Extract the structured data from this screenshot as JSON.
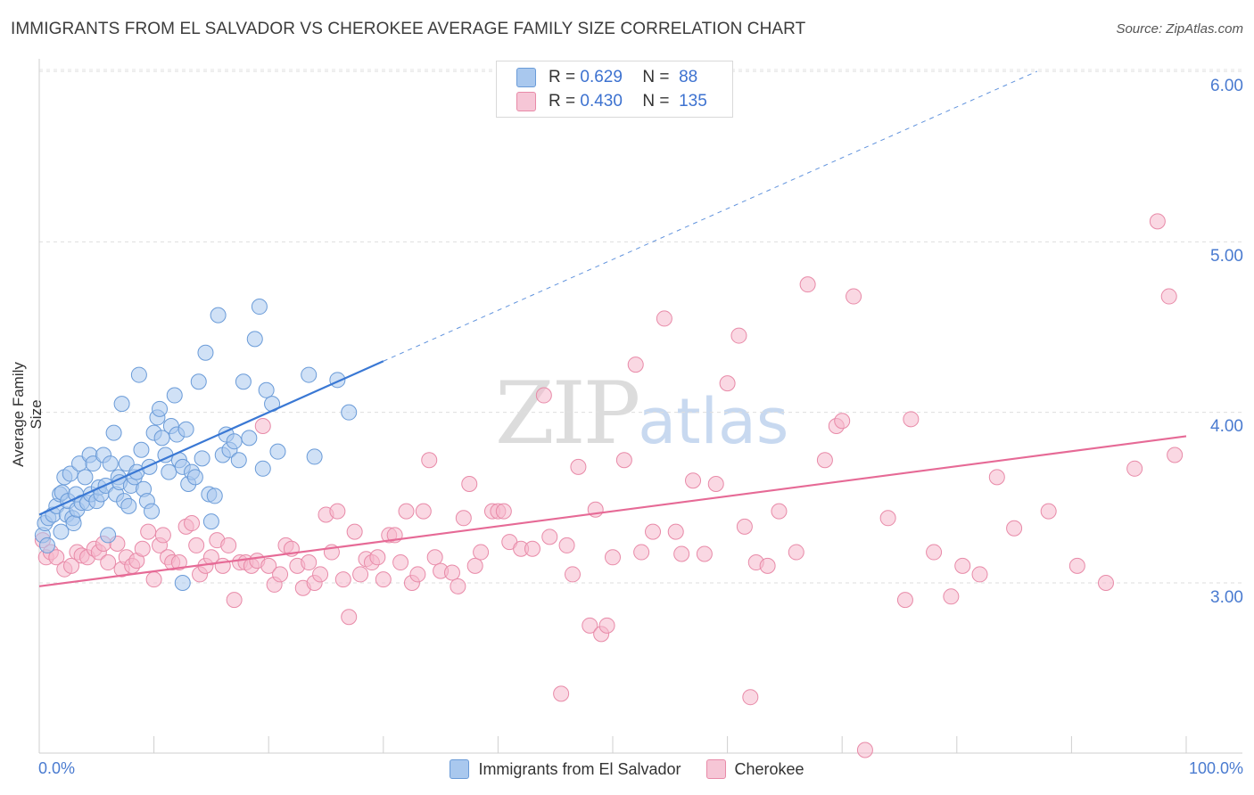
{
  "title": "IMMIGRANTS FROM EL SALVADOR VS CHEROKEE AVERAGE FAMILY SIZE CORRELATION CHART",
  "source": "Source: ZipAtlas.com",
  "watermark": {
    "zip": "ZIP",
    "atlas": "atlas"
  },
  "legend_top": {
    "r_label": "R =",
    "n_label": "N =",
    "rows": [
      {
        "r": "0.629",
        "n": "88"
      },
      {
        "r": "0.430",
        "n": "135"
      }
    ]
  },
  "colors": {
    "blue_fill": "#a9c8ee",
    "blue_stroke": "#6a9bd8",
    "blue_line": "#3a78d4",
    "pink_fill": "#f6b8cc",
    "pink_stroke": "#e88aa8",
    "pink_line": "#e66a96",
    "tick_label": "#4a7bd0"
  },
  "chart_data": {
    "type": "scatter",
    "title": "IMMIGRANTS FROM EL SALVADOR VS CHEROKEE AVERAGE FAMILY SIZE CORRELATION CHART",
    "xlabel_left": "0.0%",
    "xlabel_right": "100.0%",
    "ylabel": "Average Family Size",
    "xlim": [
      0,
      100
    ],
    "ylim": [
      2.0,
      6.1
    ],
    "yticks": [
      3.0,
      4.0,
      5.0,
      6.0
    ],
    "ytick_labels": [
      "3.00",
      "4.00",
      "5.00",
      "6.00"
    ],
    "grid": true,
    "legend_position": "top-center",
    "series": [
      {
        "name": "Immigrants from El Salvador",
        "r": 0.629,
        "n": 88,
        "trend": {
          "x0": 0,
          "y0": 3.4,
          "x1": 30,
          "y1": 4.3,
          "dash_to_x": 87,
          "dash_to_y": 6.0
        },
        "points": [
          [
            0.3,
            3.28
          ],
          [
            0.5,
            3.35
          ],
          [
            0.8,
            3.38
          ],
          [
            1.2,
            3.4
          ],
          [
            1.5,
            3.45
          ],
          [
            1.8,
            3.52
          ],
          [
            2.0,
            3.53
          ],
          [
            2.2,
            3.62
          ],
          [
            2.4,
            3.4
          ],
          [
            2.5,
            3.48
          ],
          [
            2.7,
            3.64
          ],
          [
            2.9,
            3.38
          ],
          [
            3.0,
            3.35
          ],
          [
            3.2,
            3.52
          ],
          [
            3.3,
            3.43
          ],
          [
            3.5,
            3.7
          ],
          [
            3.7,
            3.47
          ],
          [
            4.0,
            3.62
          ],
          [
            4.2,
            3.47
          ],
          [
            4.4,
            3.75
          ],
          [
            4.5,
            3.52
          ],
          [
            4.7,
            3.7
          ],
          [
            5.0,
            3.48
          ],
          [
            5.2,
            3.56
          ],
          [
            5.4,
            3.52
          ],
          [
            5.6,
            3.75
          ],
          [
            5.8,
            3.57
          ],
          [
            6.0,
            3.28
          ],
          [
            6.2,
            3.7
          ],
          [
            6.5,
            3.88
          ],
          [
            6.7,
            3.52
          ],
          [
            6.9,
            3.62
          ],
          [
            7.0,
            3.59
          ],
          [
            7.2,
            4.05
          ],
          [
            7.4,
            3.48
          ],
          [
            7.6,
            3.7
          ],
          [
            7.8,
            3.45
          ],
          [
            8.0,
            3.57
          ],
          [
            8.3,
            3.62
          ],
          [
            8.5,
            3.65
          ],
          [
            8.7,
            4.22
          ],
          [
            8.9,
            3.78
          ],
          [
            9.1,
            3.55
          ],
          [
            9.4,
            3.48
          ],
          [
            9.6,
            3.68
          ],
          [
            9.8,
            3.42
          ],
          [
            10.0,
            3.88
          ],
          [
            10.3,
            3.97
          ],
          [
            10.5,
            4.02
          ],
          [
            10.7,
            3.85
          ],
          [
            11.0,
            3.75
          ],
          [
            11.3,
            3.65
          ],
          [
            11.5,
            3.92
          ],
          [
            11.8,
            4.1
          ],
          [
            12.0,
            3.87
          ],
          [
            12.2,
            3.72
          ],
          [
            12.5,
            3.68
          ],
          [
            12.8,
            3.9
          ],
          [
            13.0,
            3.58
          ],
          [
            13.3,
            3.65
          ],
          [
            13.6,
            3.62
          ],
          [
            13.9,
            4.18
          ],
          [
            14.2,
            3.73
          ],
          [
            14.5,
            4.35
          ],
          [
            14.8,
            3.52
          ],
          [
            15.0,
            3.36
          ],
          [
            15.3,
            3.51
          ],
          [
            15.6,
            4.57
          ],
          [
            16.0,
            3.75
          ],
          [
            16.3,
            3.87
          ],
          [
            16.6,
            3.78
          ],
          [
            17.0,
            3.83
          ],
          [
            17.4,
            3.72
          ],
          [
            17.8,
            4.18
          ],
          [
            18.3,
            3.85
          ],
          [
            18.8,
            4.43
          ],
          [
            19.2,
            4.62
          ],
          [
            19.5,
            3.67
          ],
          [
            19.8,
            4.13
          ],
          [
            20.3,
            4.05
          ],
          [
            20.8,
            3.77
          ],
          [
            23.5,
            4.22
          ],
          [
            24.0,
            3.74
          ],
          [
            26.0,
            4.19
          ],
          [
            27.0,
            4.0
          ],
          [
            0.7,
            3.22
          ],
          [
            1.9,
            3.3
          ],
          [
            12.5,
            3.0
          ]
        ]
      },
      {
        "name": "Cherokee",
        "r": 0.43,
        "n": 135,
        "trend": {
          "x0": 0,
          "y0": 2.98,
          "x1": 100,
          "y1": 3.86
        },
        "points": [
          [
            0.3,
            3.25
          ],
          [
            0.6,
            3.15
          ],
          [
            1.0,
            3.18
          ],
          [
            1.5,
            3.15
          ],
          [
            2.2,
            3.08
          ],
          [
            2.8,
            3.1
          ],
          [
            3.3,
            3.18
          ],
          [
            3.7,
            3.16
          ],
          [
            4.2,
            3.15
          ],
          [
            4.8,
            3.2
          ],
          [
            5.2,
            3.18
          ],
          [
            5.6,
            3.23
          ],
          [
            6.0,
            3.12
          ],
          [
            6.8,
            3.23
          ],
          [
            7.2,
            3.08
          ],
          [
            7.6,
            3.15
          ],
          [
            8.1,
            3.1
          ],
          [
            8.5,
            3.13
          ],
          [
            9.0,
            3.2
          ],
          [
            9.5,
            3.3
          ],
          [
            10.0,
            3.02
          ],
          [
            10.5,
            3.22
          ],
          [
            10.8,
            3.28
          ],
          [
            11.2,
            3.15
          ],
          [
            11.6,
            3.12
          ],
          [
            12.2,
            3.12
          ],
          [
            12.8,
            3.33
          ],
          [
            13.3,
            3.35
          ],
          [
            13.7,
            3.22
          ],
          [
            14.0,
            3.05
          ],
          [
            14.5,
            3.1
          ],
          [
            15.0,
            3.15
          ],
          [
            15.5,
            3.25
          ],
          [
            16.0,
            3.1
          ],
          [
            16.5,
            3.22
          ],
          [
            17.0,
            2.9
          ],
          [
            17.5,
            3.12
          ],
          [
            18.0,
            3.12
          ],
          [
            18.5,
            3.1
          ],
          [
            19.0,
            3.13
          ],
          [
            19.5,
            3.92
          ],
          [
            20.0,
            3.1
          ],
          [
            20.5,
            2.99
          ],
          [
            21.0,
            3.05
          ],
          [
            21.5,
            3.22
          ],
          [
            22.0,
            3.2
          ],
          [
            22.5,
            3.1
          ],
          [
            23.0,
            2.97
          ],
          [
            23.5,
            3.12
          ],
          [
            24.0,
            3.0
          ],
          [
            24.5,
            3.05
          ],
          [
            25.0,
            3.4
          ],
          [
            25.5,
            3.18
          ],
          [
            26.0,
            3.42
          ],
          [
            26.5,
            3.02
          ],
          [
            27.0,
            2.8
          ],
          [
            27.5,
            3.3
          ],
          [
            28.0,
            3.05
          ],
          [
            28.5,
            3.14
          ],
          [
            29.0,
            3.12
          ],
          [
            29.5,
            3.15
          ],
          [
            30.0,
            3.02
          ],
          [
            30.5,
            3.28
          ],
          [
            31.0,
            3.28
          ],
          [
            31.5,
            3.12
          ],
          [
            32.0,
            3.42
          ],
          [
            32.5,
            3.0
          ],
          [
            33.0,
            3.05
          ],
          [
            33.5,
            3.42
          ],
          [
            34.0,
            3.72
          ],
          [
            34.5,
            3.15
          ],
          [
            35.0,
            3.07
          ],
          [
            36.0,
            3.06
          ],
          [
            36.5,
            2.98
          ],
          [
            37.0,
            3.38
          ],
          [
            37.5,
            3.58
          ],
          [
            38.0,
            3.1
          ],
          [
            38.5,
            3.18
          ],
          [
            39.5,
            3.42
          ],
          [
            40.0,
            3.42
          ],
          [
            40.5,
            3.42
          ],
          [
            41.0,
            3.24
          ],
          [
            42.0,
            3.2
          ],
          [
            43.0,
            3.2
          ],
          [
            44.0,
            4.1
          ],
          [
            44.5,
            3.27
          ],
          [
            45.5,
            2.35
          ],
          [
            46.0,
            3.22
          ],
          [
            46.5,
            3.05
          ],
          [
            47.0,
            3.68
          ],
          [
            48.0,
            2.75
          ],
          [
            48.5,
            3.43
          ],
          [
            49.0,
            2.7
          ],
          [
            49.5,
            2.75
          ],
          [
            50.0,
            3.15
          ],
          [
            51.0,
            3.72
          ],
          [
            52.0,
            4.28
          ],
          [
            52.5,
            3.18
          ],
          [
            53.5,
            3.3
          ],
          [
            54.5,
            4.55
          ],
          [
            55.5,
            3.3
          ],
          [
            56.0,
            3.17
          ],
          [
            57.0,
            3.6
          ],
          [
            58.0,
            3.17
          ],
          [
            59.0,
            3.58
          ],
          [
            60.0,
            4.17
          ],
          [
            61.0,
            4.45
          ],
          [
            61.5,
            3.33
          ],
          [
            62.0,
            2.33
          ],
          [
            62.5,
            3.12
          ],
          [
            63.5,
            3.1
          ],
          [
            64.5,
            3.42
          ],
          [
            66.0,
            3.18
          ],
          [
            67.0,
            4.75
          ],
          [
            68.5,
            3.72
          ],
          [
            69.5,
            3.92
          ],
          [
            70.0,
            3.95
          ],
          [
            71.0,
            4.68
          ],
          [
            74.0,
            3.38
          ],
          [
            75.5,
            2.9
          ],
          [
            76.0,
            3.96
          ],
          [
            78.0,
            3.18
          ],
          [
            79.5,
            2.92
          ],
          [
            80.5,
            3.1
          ],
          [
            82.0,
            3.05
          ],
          [
            83.5,
            3.62
          ],
          [
            85.0,
            3.32
          ],
          [
            88.0,
            3.42
          ],
          [
            90.5,
            3.1
          ],
          [
            93.0,
            3.0
          ],
          [
            95.5,
            3.67
          ],
          [
            97.5,
            5.12
          ],
          [
            98.5,
            4.68
          ],
          [
            99.0,
            3.75
          ],
          [
            72.0,
            2.02
          ]
        ]
      }
    ]
  }
}
